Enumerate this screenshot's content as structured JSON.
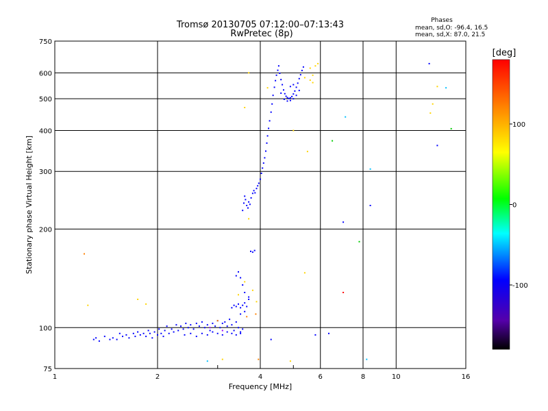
{
  "chart_data": {
    "type": "scatter",
    "title": "Tromsø 20130705 07:12:00–07:13:43",
    "subtitle": "RwPretec (8p)",
    "xlabel": "Frequency [MHz]",
    "ylabel": "Stationary phase Virtual Height [km]",
    "x_scale": "log",
    "y_scale": "log",
    "xlim": [
      1,
      16
    ],
    "ylim": [
      75,
      750
    ],
    "x_ticks": [
      1,
      2,
      4,
      6,
      8,
      10,
      16
    ],
    "y_ticks": [
      75,
      100,
      200,
      300,
      400,
      500,
      600,
      750
    ],
    "grid": true,
    "legend": {
      "title": "Phases",
      "lines": [
        "mean, sd,O: -96.4, 16.5",
        "mean, sd,X:  87.0, 21.5"
      ],
      "placement": "top-right"
    },
    "colorbar": {
      "label": "[deg]",
      "range": [
        -180,
        180
      ],
      "ticks": [
        100,
        0,
        -100
      ],
      "colors": [
        "#000000",
        "#5500aa",
        "#0000ff",
        "#00ffff",
        "#00ff00",
        "#ffff00",
        "#ff8000",
        "#ff0000"
      ]
    },
    "series": [
      {
        "color": "#0000ff",
        "points": [
          [
            1.3,
            92
          ],
          [
            1.32,
            93
          ],
          [
            1.35,
            91
          ],
          [
            1.4,
            94
          ],
          [
            1.45,
            92
          ],
          [
            1.48,
            93
          ],
          [
            1.52,
            92
          ],
          [
            1.55,
            96
          ],
          [
            1.58,
            94
          ],
          [
            1.62,
            95
          ],
          [
            1.65,
            93
          ],
          [
            1.7,
            96
          ],
          [
            1.72,
            94
          ],
          [
            1.75,
            97
          ],
          [
            1.78,
            95
          ],
          [
            1.82,
            96
          ],
          [
            1.85,
            94
          ],
          [
            1.88,
            98
          ],
          [
            1.9,
            96
          ],
          [
            1.93,
            93
          ],
          [
            1.96,
            97
          ],
          [
            2.0,
            95
          ],
          [
            2.02,
            99
          ],
          [
            2.05,
            96
          ],
          [
            2.08,
            94
          ],
          [
            2.1,
            98
          ],
          [
            2.13,
            101
          ],
          [
            2.16,
            96
          ],
          [
            2.2,
            99
          ],
          [
            2.23,
            97
          ],
          [
            2.27,
            102
          ],
          [
            2.3,
            98
          ],
          [
            2.34,
            101
          ],
          [
            2.38,
            99
          ],
          [
            2.42,
            103
          ],
          [
            2.46,
            100
          ],
          [
            2.5,
            102
          ],
          [
            2.55,
            99
          ],
          [
            2.6,
            103
          ],
          [
            2.65,
            101
          ],
          [
            2.7,
            104
          ],
          [
            2.75,
            100
          ],
          [
            2.8,
            102
          ],
          [
            2.85,
            98
          ],
          [
            2.9,
            103
          ],
          [
            2.95,
            101
          ],
          [
            3.0,
            105
          ],
          [
            3.05,
            100
          ],
          [
            3.1,
            103
          ],
          [
            3.15,
            104
          ],
          [
            3.2,
            101
          ],
          [
            3.25,
            106
          ],
          [
            3.3,
            102
          ],
          [
            3.35,
            98
          ],
          [
            3.4,
            104
          ],
          [
            3.45,
            100
          ],
          [
            3.5,
            96
          ],
          [
            3.55,
            99
          ],
          [
            2.4,
            95
          ],
          [
            2.5,
            96
          ],
          [
            2.6,
            94
          ],
          [
            2.7,
            96
          ],
          [
            2.8,
            95
          ],
          [
            2.9,
            97
          ],
          [
            3.0,
            96
          ],
          [
            3.1,
            95
          ],
          [
            3.2,
            97
          ],
          [
            3.3,
            96
          ],
          [
            3.4,
            95
          ],
          [
            3.5,
            97
          ],
          [
            3.3,
            115
          ],
          [
            3.35,
            117
          ],
          [
            3.4,
            116
          ],
          [
            3.45,
            118
          ],
          [
            3.5,
            115
          ],
          [
            3.55,
            117
          ],
          [
            3.6,
            119
          ],
          [
            3.65,
            116
          ],
          [
            3.7,
            122
          ],
          [
            3.6,
            128
          ],
          [
            3.55,
            135
          ],
          [
            3.5,
            142
          ],
          [
            3.45,
            148
          ],
          [
            3.4,
            144
          ],
          [
            3.5,
            110
          ],
          [
            3.6,
            112
          ],
          [
            3.7,
            124
          ],
          [
            3.8,
            170
          ],
          [
            3.85,
            172
          ],
          [
            3.75,
            171
          ],
          [
            3.55,
            228
          ],
          [
            3.58,
            240
          ],
          [
            3.6,
            252
          ],
          [
            3.62,
            246
          ],
          [
            3.65,
            236
          ],
          [
            3.68,
            232
          ],
          [
            3.7,
            242
          ],
          [
            3.73,
            238
          ],
          [
            3.76,
            249
          ],
          [
            3.8,
            257
          ],
          [
            3.83,
            262
          ],
          [
            3.86,
            258
          ],
          [
            3.9,
            266
          ],
          [
            3.93,
            271
          ],
          [
            3.96,
            276
          ],
          [
            4.0,
            284
          ],
          [
            4.03,
            296
          ],
          [
            4.06,
            307
          ],
          [
            4.09,
            318
          ],
          [
            4.12,
            330
          ],
          [
            4.15,
            346
          ],
          [
            4.18,
            366
          ],
          [
            4.2,
            385
          ],
          [
            4.23,
            406
          ],
          [
            4.26,
            428
          ],
          [
            4.3,
            455
          ],
          [
            4.33,
            482
          ],
          [
            4.36,
            512
          ],
          [
            4.4,
            542
          ],
          [
            4.43,
            568
          ],
          [
            4.46,
            590
          ],
          [
            4.5,
            611
          ],
          [
            4.53,
            630
          ],
          [
            4.56,
            598
          ],
          [
            4.6,
            572
          ],
          [
            4.64,
            552
          ],
          [
            4.68,
            532
          ],
          [
            4.72,
            518
          ],
          [
            4.76,
            509
          ],
          [
            4.8,
            504
          ],
          [
            4.85,
            501
          ],
          [
            4.9,
            503
          ],
          [
            4.95,
            508
          ],
          [
            5.0,
            517
          ],
          [
            5.05,
            528
          ],
          [
            5.1,
            542
          ],
          [
            5.15,
            558
          ],
          [
            5.2,
            576
          ],
          [
            5.25,
            592
          ],
          [
            5.3,
            610
          ],
          [
            5.35,
            625
          ],
          [
            4.6,
            520
          ],
          [
            4.7,
            498
          ],
          [
            4.8,
            492
          ],
          [
            4.9,
            494
          ],
          [
            5.0,
            500
          ],
          [
            5.1,
            512
          ],
          [
            4.9,
            545
          ],
          [
            5.0,
            552
          ],
          [
            5.2,
            530
          ],
          [
            4.3,
            92
          ],
          [
            5.8,
            95
          ],
          [
            6.35,
            96
          ],
          [
            7.0,
            210
          ],
          [
            8.4,
            236
          ],
          [
            12.5,
            640
          ],
          [
            13.2,
            360
          ]
        ]
      },
      {
        "color": "#00bfff",
        "points": [
          [
            2.8,
            79
          ],
          [
            7.1,
            440
          ],
          [
            8.2,
            80
          ],
          [
            8.4,
            305
          ],
          [
            14.0,
            540
          ]
        ]
      },
      {
        "color": "#ffd400",
        "points": [
          [
            1.25,
            117
          ],
          [
            1.75,
            122
          ],
          [
            1.85,
            118
          ],
          [
            3.45,
            126
          ],
          [
            3.6,
            138
          ],
          [
            3.8,
            130
          ],
          [
            3.9,
            120
          ],
          [
            3.7,
            600
          ],
          [
            3.6,
            470
          ],
          [
            3.7,
            215
          ],
          [
            5.0,
            400
          ],
          [
            5.5,
            345
          ],
          [
            5.4,
            580
          ],
          [
            5.6,
            570
          ],
          [
            5.7,
            590
          ],
          [
            5.8,
            630
          ],
          [
            5.9,
            640
          ],
          [
            5.6,
            620
          ],
          [
            5.7,
            560
          ],
          [
            12.8,
            482
          ],
          [
            12.6,
            452
          ],
          [
            13.2,
            545
          ],
          [
            5.4,
            147
          ],
          [
            4.2,
            540
          ],
          [
            4.9,
            79
          ],
          [
            3.1,
            80
          ]
        ]
      },
      {
        "color": "#ff8000",
        "points": [
          [
            1.22,
            168
          ],
          [
            3.0,
            105
          ],
          [
            3.65,
            108
          ],
          [
            3.88,
            110
          ],
          [
            3.95,
            80
          ]
        ]
      },
      {
        "color": "#00cc00",
        "points": [
          [
            6.5,
            372
          ],
          [
            7.8,
            183
          ],
          [
            14.5,
            405
          ]
        ]
      },
      {
        "color": "#ff0000",
        "points": [
          [
            7.0,
            128
          ]
        ]
      },
      {
        "color": "#9900ff",
        "points": [
          [
            2.85,
            100
          ],
          [
            3.1,
            98
          ]
        ]
      }
    ]
  }
}
